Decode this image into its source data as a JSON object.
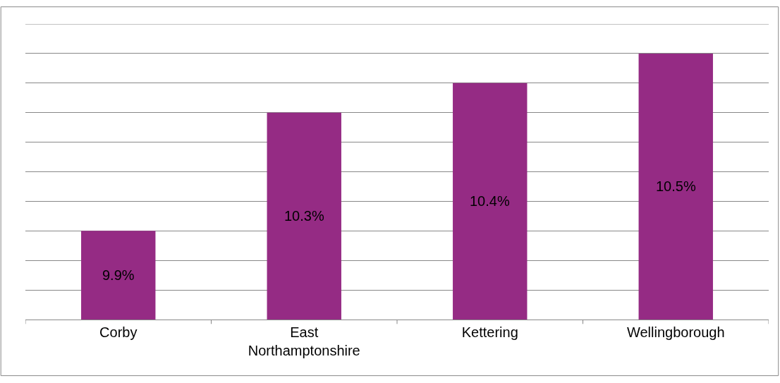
{
  "chart_data": {
    "type": "bar",
    "categories": [
      "Corby",
      "East Northamptonshire",
      "Kettering",
      "Wellingborough"
    ],
    "values": [
      9.9,
      10.3,
      10.4,
      10.5
    ],
    "value_labels": [
      "9.9%",
      "10.3%",
      "10.4%",
      "10.5%"
    ],
    "color": "#952b84",
    "ylim": [
      9.6,
      10.6
    ],
    "yticks": [
      {
        "value": 9.6,
        "label": null
      },
      {
        "value": 9.7,
        "label": null
      },
      {
        "value": 9.8,
        "label": null
      },
      {
        "value": 9.9,
        "label": null
      },
      {
        "value": 10.0,
        "label": null
      },
      {
        "value": 10.1,
        "label": null
      },
      {
        "value": 10.2,
        "label": null
      },
      {
        "value": 10.3,
        "label": null
      },
      {
        "value": 10.4,
        "label": null
      },
      {
        "value": 10.5,
        "label": null
      },
      {
        "value": 10.6,
        "label": null
      }
    ],
    "tick_labels": "x",
    "grid": "y"
  }
}
